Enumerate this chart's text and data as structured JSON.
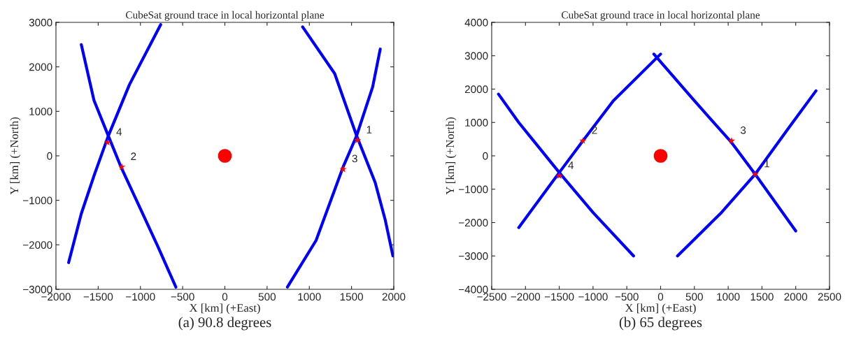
{
  "chart_data": [
    {
      "type": "line",
      "title": "CubeSat ground trace in local horizontal plane",
      "xlabel": "X [km] (+East)",
      "ylabel": "Y [km] (+North)",
      "xlim": [
        -2000,
        2000
      ],
      "ylim": [
        -3000,
        3000
      ],
      "xticks": [
        -2000,
        -1500,
        -1000,
        -500,
        0,
        500,
        1000,
        1500,
        2000
      ],
      "yticks": [
        -3000,
        -2000,
        -1000,
        0,
        1000,
        2000,
        3000
      ],
      "grid": false,
      "series": [
        {
          "color": "#0000ff",
          "x": [
            -1700,
            -1550,
            -1380,
            -1230,
            -1010,
            -790,
            -580
          ],
          "values": [
            2500,
            1250,
            450,
            -250,
            -1150,
            -2050,
            -2950
          ]
        },
        {
          "color": "#0000ff",
          "x": [
            -1850,
            -1700,
            -1550,
            -1380,
            -1130,
            -760
          ],
          "values": [
            -2400,
            -1300,
            -450,
            450,
            1600,
            2950
          ]
        },
        {
          "color": "#0000ff",
          "x": [
            920,
            1300,
            1560,
            1780,
            1900,
            1990
          ],
          "values": [
            2900,
            1850,
            450,
            -600,
            -1450,
            -2250
          ]
        },
        {
          "color": "#0000ff",
          "x": [
            740,
            1080,
            1400,
            1560,
            1750,
            1840
          ],
          "values": [
            -2950,
            -1900,
            -250,
            450,
            1550,
            2400
          ]
        },
        {
          "type": "scatter",
          "marker": "star",
          "color": "#ff0000",
          "x": [
            -1390,
            -1220,
            1400,
            1570
          ],
          "values": [
            300,
            -250,
            -300,
            350
          ]
        },
        {
          "type": "scatter",
          "marker": "circle",
          "color": "#ff0000",
          "x": [
            0
          ],
          "values": [
            0
          ]
        }
      ],
      "annotations": [
        {
          "text": "4",
          "x": -1390,
          "y": 300
        },
        {
          "text": "2",
          "x": -1220,
          "y": -250
        },
        {
          "text": "3",
          "x": 1400,
          "y": -300
        },
        {
          "text": "1",
          "x": 1570,
          "y": 350
        },
        "(a) 90.8 degrees"
      ]
    },
    {
      "type": "line",
      "title": "CubeSat ground trace in local horizontal plane",
      "xlabel": "X [km] (+East)",
      "ylabel": "Y [km] (+North)",
      "xlim": [
        -2500,
        2500
      ],
      "ylim": [
        -4000,
        4000
      ],
      "xticks": [
        -2500,
        -2000,
        -1500,
        -1000,
        -500,
        0,
        500,
        1000,
        1500,
        2000,
        2500
      ],
      "yticks": [
        -4000,
        -3000,
        -2000,
        -1000,
        0,
        1000,
        2000,
        3000,
        4000
      ],
      "grid": false,
      "series": [
        {
          "color": "#0000ff",
          "x": [
            -2400,
            -2100,
            -1500,
            -1000,
            -400
          ],
          "values": [
            1850,
            1000,
            -500,
            -1700,
            -3000
          ]
        },
        {
          "color": "#0000ff",
          "x": [
            -2100,
            -1500,
            -1150,
            -700,
            -50,
            0
          ],
          "values": [
            -2150,
            -500,
            450,
            1650,
            2950,
            3050
          ]
        },
        {
          "color": "#0000ff",
          "x": [
            -100,
            500,
            1050,
            1400,
            2000
          ],
          "values": [
            3050,
            1650,
            400,
            -550,
            -2250
          ]
        },
        {
          "color": "#0000ff",
          "x": [
            250,
            900,
            1400,
            1900,
            2300
          ],
          "values": [
            -3000,
            -1700,
            -550,
            850,
            1950
          ]
        },
        {
          "type": "scatter",
          "marker": "star",
          "color": "#ff0000",
          "x": [
            -1150,
            1050,
            1400,
            -1500
          ],
          "values": [
            450,
            450,
            -550,
            -600
          ]
        },
        {
          "type": "scatter",
          "marker": "circle",
          "color": "#ff0000",
          "x": [
            0
          ],
          "values": [
            0
          ]
        }
      ],
      "annotations": [
        {
          "text": "2",
          "x": -1150,
          "y": 450
        },
        {
          "text": "3",
          "x": 1050,
          "y": 450
        },
        {
          "text": "1",
          "x": 1400,
          "y": -550
        },
        {
          "text": "4",
          "x": -1500,
          "y": -600
        },
        "(b) 65 degrees"
      ]
    }
  ]
}
